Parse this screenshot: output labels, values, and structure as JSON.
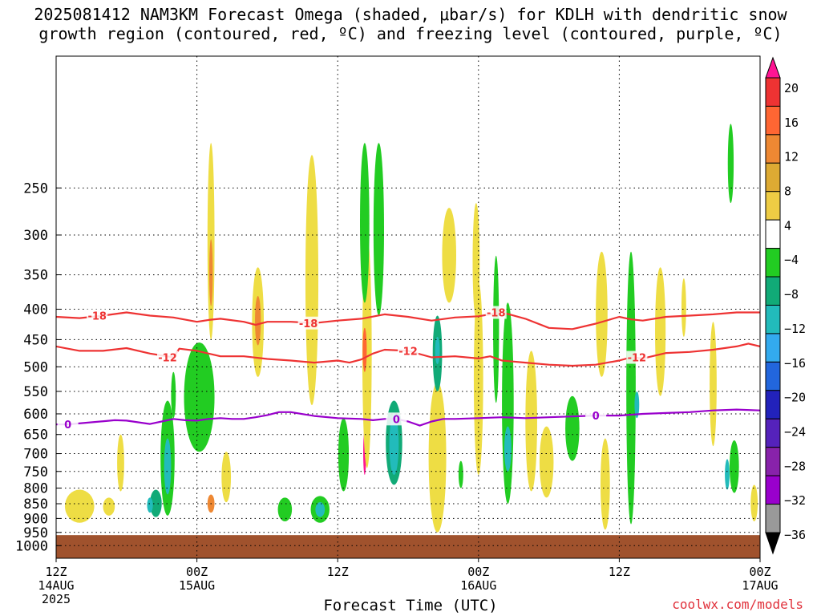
{
  "title": {
    "line1": "2025081412 NAM3KM Forecast Omega (shaded, μbar/s) for KDLH with dendritic snow",
    "line2": "growth region (contoured, red, ºC) and freezing level (contoured, purple, ºC)"
  },
  "watermark": "coolwx.com/models",
  "chart_data": {
    "type": "heatmap",
    "xlabel": "Forecast Time (UTC)",
    "ylabel": "",
    "x_range_hours": [
      0,
      60
    ],
    "y_range_hpa": [
      150,
      1050
    ],
    "y_scale": "log-pressure",
    "x_ticks": [
      {
        "hour": 0,
        "lines": [
          "12Z",
          "14AUG",
          "2025"
        ]
      },
      {
        "hour": 12,
        "lines": [
          "00Z",
          "15AUG"
        ]
      },
      {
        "hour": 24,
        "lines": [
          "12Z"
        ]
      },
      {
        "hour": 36,
        "lines": [
          "00Z",
          "16AUG"
        ]
      },
      {
        "hour": 48,
        "lines": [
          "12Z"
        ]
      },
      {
        "hour": 60,
        "lines": [
          "00Z",
          "17AUG"
        ]
      }
    ],
    "y_ticks": [
      250,
      300,
      350,
      400,
      450,
      500,
      550,
      600,
      650,
      700,
      750,
      800,
      850,
      900,
      950,
      1000
    ],
    "grid": true,
    "surface_pressure_hpa": 960,
    "colorbar": {
      "labels": [
        "20",
        "16",
        "12",
        "8",
        "4",
        "−4",
        "−8",
        "−12",
        "−16",
        "−20",
        "−24",
        "−28",
        "−32",
        "−36"
      ],
      "colors": [
        "#ff1493",
        "#ee3333",
        "#ff6633",
        "#ee8833",
        "#ddaa33",
        "#eecc44",
        "#ffffff",
        "#22cc22",
        "#11aa77",
        "#22bbbb",
        "#33aaee",
        "#2266dd",
        "#2222bb",
        "#5522bb",
        "#8822aa",
        "#9900cc",
        "#999999",
        "#000000"
      ]
    },
    "contours": [
      {
        "name": "-18",
        "color": "#ee3333",
        "label_hours": [
          3.5,
          21.5,
          37.5
        ],
        "points": [
          [
            0,
            412
          ],
          [
            2,
            414
          ],
          [
            4,
            410
          ],
          [
            6,
            405
          ],
          [
            8,
            410
          ],
          [
            10,
            413
          ],
          [
            12,
            420
          ],
          [
            13,
            417
          ],
          [
            14,
            415
          ],
          [
            16,
            420
          ],
          [
            17,
            425
          ],
          [
            18,
            420
          ],
          [
            20,
            420
          ],
          [
            22,
            422
          ],
          [
            24,
            418
          ],
          [
            26,
            415
          ],
          [
            28,
            408
          ],
          [
            30,
            412
          ],
          [
            32,
            418
          ],
          [
            34,
            413
          ],
          [
            36,
            411
          ],
          [
            38,
            405
          ],
          [
            40,
            415
          ],
          [
            42,
            430
          ],
          [
            44,
            432
          ],
          [
            46,
            423
          ],
          [
            48,
            412
          ],
          [
            49,
            416
          ],
          [
            50,
            418
          ],
          [
            52,
            412
          ],
          [
            54,
            410
          ],
          [
            56,
            408
          ],
          [
            58,
            405
          ],
          [
            60,
            405
          ]
        ]
      },
      {
        "name": "-12",
        "color": "#ee3333",
        "label_hours": [
          9.5,
          30.0,
          49.5
        ],
        "points": [
          [
            0,
            462
          ],
          [
            2,
            470
          ],
          [
            4,
            470
          ],
          [
            6,
            465
          ],
          [
            8,
            475
          ],
          [
            10,
            482
          ],
          [
            10.5,
            466
          ],
          [
            12,
            470
          ],
          [
            13,
            475
          ],
          [
            14,
            480
          ],
          [
            16,
            480
          ],
          [
            18,
            485
          ],
          [
            20,
            488
          ],
          [
            22,
            492
          ],
          [
            24,
            488
          ],
          [
            25,
            492
          ],
          [
            26,
            486
          ],
          [
            27,
            475
          ],
          [
            28,
            468
          ],
          [
            30,
            470
          ],
          [
            32,
            482
          ],
          [
            34,
            480
          ],
          [
            36,
            484
          ],
          [
            37,
            480
          ],
          [
            38,
            488
          ],
          [
            40,
            492
          ],
          [
            42,
            496
          ],
          [
            44,
            498
          ],
          [
            46,
            496
          ],
          [
            48,
            488
          ],
          [
            49,
            482
          ],
          [
            50,
            484
          ],
          [
            52,
            474
          ],
          [
            54,
            472
          ],
          [
            56,
            468
          ],
          [
            58,
            462
          ],
          [
            59,
            457
          ],
          [
            60,
            462
          ]
        ]
      },
      {
        "name": "0",
        "color": "#9900cc",
        "label_hours": [
          1.0,
          29.0,
          46.0
        ],
        "points": [
          [
            0,
            625
          ],
          [
            1,
            625
          ],
          [
            3,
            620
          ],
          [
            5,
            615
          ],
          [
            6,
            616
          ],
          [
            7,
            620
          ],
          [
            8,
            624
          ],
          [
            9,
            618
          ],
          [
            10,
            612
          ],
          [
            11,
            615
          ],
          [
            12,
            616
          ],
          [
            13,
            612
          ],
          [
            14,
            610
          ],
          [
            15,
            612
          ],
          [
            16,
            612
          ],
          [
            17,
            608
          ],
          [
            18,
            603
          ],
          [
            19,
            596
          ],
          [
            20,
            596
          ],
          [
            22,
            605
          ],
          [
            24,
            610
          ],
          [
            26,
            612
          ],
          [
            27,
            615
          ],
          [
            28,
            612
          ],
          [
            29,
            612
          ],
          [
            30,
            618
          ],
          [
            31,
            628
          ],
          [
            32,
            618
          ],
          [
            33,
            612
          ],
          [
            34,
            612
          ],
          [
            36,
            610
          ],
          [
            38,
            608
          ],
          [
            40,
            610
          ],
          [
            42,
            608
          ],
          [
            44,
            606
          ],
          [
            46,
            604
          ],
          [
            48,
            604
          ],
          [
            50,
            600
          ],
          [
            52,
            598
          ],
          [
            54,
            596
          ],
          [
            56,
            592
          ],
          [
            58,
            590
          ],
          [
            60,
            592
          ]
        ]
      }
    ],
    "omega_cells": [
      {
        "c": 12.3,
        "p": 600,
        "w": 0.9,
        "h": 95,
        "v": -36
      },
      {
        "c": 12.3,
        "p": 590,
        "w": 1.4,
        "h": 135,
        "v": -24
      },
      {
        "c": 12.3,
        "p": 580,
        "w": 1.9,
        "h": 180,
        "v": -14
      },
      {
        "c": 12.2,
        "p": 575,
        "w": 2.6,
        "h": 240,
        "v": -6
      },
      {
        "c": 26.3,
        "p": 700,
        "w": 0.25,
        "h": 120,
        "v": 24
      },
      {
        "c": 26.5,
        "p": 520,
        "w": 0.8,
        "h": 440,
        "v": 5
      },
      {
        "c": 26.3,
        "p": 470,
        "w": 0.35,
        "h": 80,
        "v": 14
      },
      {
        "c": 32.5,
        "p": 700,
        "w": 0.9,
        "h": 340,
        "v": 24
      },
      {
        "c": 32.5,
        "p": 740,
        "w": 1.5,
        "h": 420,
        "v": 6
      },
      {
        "c": 32.5,
        "p": 480,
        "w": 0.8,
        "h": 140,
        "v": -8
      },
      {
        "c": 32.5,
        "p": 470,
        "w": 0.4,
        "h": 50,
        "v": -14
      },
      {
        "c": 28.8,
        "p": 680,
        "w": 1.4,
        "h": 220,
        "v": -9
      },
      {
        "c": 28.8,
        "p": 680,
        "w": 0.8,
        "h": 160,
        "v": -13
      },
      {
        "c": 24.5,
        "p": 710,
        "w": 0.9,
        "h": 200,
        "v": -6
      },
      {
        "c": 26.3,
        "p": 300,
        "w": 0.8,
        "h": 180,
        "v": -5
      },
      {
        "c": 9.5,
        "p": 730,
        "w": 1.2,
        "h": 320,
        "v": -6
      },
      {
        "c": 9.5,
        "p": 740,
        "w": 0.6,
        "h": 160,
        "v": -12
      },
      {
        "c": 8.5,
        "p": 850,
        "w": 1.0,
        "h": 90,
        "v": -10
      },
      {
        "c": 8.0,
        "p": 855,
        "w": 0.5,
        "h": 50,
        "v": -14
      },
      {
        "c": 10.0,
        "p": 560,
        "w": 0.4,
        "h": 100,
        "v": -6
      },
      {
        "c": 13.2,
        "p": 330,
        "w": 0.6,
        "h": 240,
        "v": 5
      },
      {
        "c": 13.2,
        "p": 350,
        "w": 0.3,
        "h": 90,
        "v": 9
      },
      {
        "c": 13.2,
        "p": 850,
        "w": 0.6,
        "h": 60,
        "v": 9
      },
      {
        "c": 14.5,
        "p": 770,
        "w": 0.8,
        "h": 150,
        "v": 5
      },
      {
        "c": 17.2,
        "p": 430,
        "w": 1.0,
        "h": 180,
        "v": 5
      },
      {
        "c": 17.2,
        "p": 420,
        "w": 0.5,
        "h": 80,
        "v": 9
      },
      {
        "c": 21.8,
        "p": 400,
        "w": 1.1,
        "h": 360,
        "v": 5
      },
      {
        "c": 19.5,
        "p": 870,
        "w": 1.2,
        "h": 80,
        "v": -6
      },
      {
        "c": 22.5,
        "p": 870,
        "w": 1.6,
        "h": 90,
        "v": -6
      },
      {
        "c": 22.5,
        "p": 870,
        "w": 0.8,
        "h": 50,
        "v": -12
      },
      {
        "c": 27.5,
        "p": 310,
        "w": 0.9,
        "h": 200,
        "v": -5
      },
      {
        "c": 33.5,
        "p": 330,
        "w": 1.2,
        "h": 120,
        "v": 5
      },
      {
        "c": 34.5,
        "p": 760,
        "w": 0.4,
        "h": 80,
        "v": -5
      },
      {
        "c": 35.8,
        "p": 340,
        "w": 0.6,
        "h": 150,
        "v": 5
      },
      {
        "c": 36.0,
        "p": 560,
        "w": 0.8,
        "h": 400,
        "v": 5
      },
      {
        "c": 37.5,
        "p": 450,
        "w": 0.5,
        "h": 250,
        "v": -5
      },
      {
        "c": 38.5,
        "p": 620,
        "w": 1.0,
        "h": 460,
        "v": -6
      },
      {
        "c": 38.5,
        "p": 690,
        "w": 0.6,
        "h": 120,
        "v": -12
      },
      {
        "c": 40.5,
        "p": 640,
        "w": 1.0,
        "h": 340,
        "v": 5
      },
      {
        "c": 41.8,
        "p": 730,
        "w": 1.2,
        "h": 200,
        "v": 5
      },
      {
        "c": 44.0,
        "p": 640,
        "w": 1.2,
        "h": 160,
        "v": -6
      },
      {
        "c": 46.8,
        "p": 800,
        "w": 0.8,
        "h": 280,
        "v": 5
      },
      {
        "c": 46.5,
        "p": 420,
        "w": 1.0,
        "h": 200,
        "v": 5
      },
      {
        "c": 49.0,
        "p": 620,
        "w": 0.8,
        "h": 600,
        "v": -6
      },
      {
        "c": 49.5,
        "p": 580,
        "w": 0.4,
        "h": 60,
        "v": -12
      },
      {
        "c": 51.5,
        "p": 450,
        "w": 0.9,
        "h": 220,
        "v": 5
      },
      {
        "c": 53.5,
        "p": 400,
        "w": 0.4,
        "h": 90,
        "v": 5
      },
      {
        "c": 57.5,
        "p": 230,
        "w": 0.5,
        "h": 70,
        "v": -6
      },
      {
        "c": 56.0,
        "p": 550,
        "w": 0.6,
        "h": 260,
        "v": 5
      },
      {
        "c": 57.8,
        "p": 740,
        "w": 0.8,
        "h": 150,
        "v": -6
      },
      {
        "c": 57.2,
        "p": 760,
        "w": 0.4,
        "h": 90,
        "v": -12
      },
      {
        "c": 59.5,
        "p": 850,
        "w": 0.6,
        "h": 120,
        "v": 5
      },
      {
        "c": 2.0,
        "p": 860,
        "w": 2.5,
        "h": 110,
        "v": 5
      },
      {
        "c": 5.5,
        "p": 730,
        "w": 0.6,
        "h": 160,
        "v": 5
      },
      {
        "c": 4.5,
        "p": 860,
        "w": 1.0,
        "h": 60,
        "v": 5
      },
      {
        "c": 7.5,
        "p": 250,
        "w": 0,
        "h": 0,
        "v": 0
      }
    ]
  }
}
